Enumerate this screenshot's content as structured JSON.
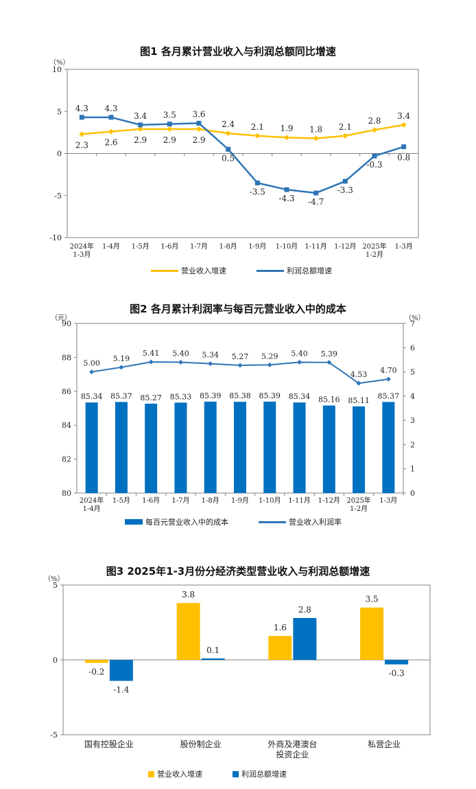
{
  "colors": {
    "yellow": "#FFC000",
    "blue": "#2E75B6",
    "axis": "#808080"
  },
  "chart_data": [
    {
      "type": "line",
      "title": "图1  各月累计营业收入与利润总额同比增速",
      "y_unit": "（%）",
      "ylim": [
        -10,
        10
      ],
      "yticks": [
        -10,
        -5,
        0,
        5,
        10
      ],
      "categories": [
        [
          "2024年",
          "1-3月"
        ],
        [
          "1-4月"
        ],
        [
          "1-5月"
        ],
        [
          "1-6月"
        ],
        [
          "1-7月"
        ],
        [
          "1-8月"
        ],
        [
          "1-9月"
        ],
        [
          "1-10月"
        ],
        [
          "1-11月"
        ],
        [
          "1-12月"
        ],
        [
          "2025年",
          "1-2月"
        ],
        [
          "1-3月"
        ]
      ],
      "series": [
        {
          "name": "营业收入增速",
          "color": "#FFC000",
          "marker": "diamond",
          "values": [
            2.3,
            2.6,
            2.9,
            2.9,
            2.9,
            2.4,
            2.1,
            1.9,
            1.8,
            2.1,
            2.8,
            3.4
          ],
          "labels": [
            "2.3",
            "2.6",
            "2.9",
            "2.9",
            "2.9",
            "2.4",
            "2.1",
            "1.9",
            "1.8",
            "2.1",
            "2.8",
            "3.4"
          ]
        },
        {
          "name": "利润总额增速",
          "color": "#2E75B6",
          "marker": "square",
          "values": [
            4.3,
            4.3,
            3.4,
            3.5,
            3.6,
            0.5,
            -3.5,
            -4.3,
            -4.7,
            -3.3,
            -0.3,
            0.8
          ],
          "labels": [
            "4.3",
            "4.3",
            "3.4",
            "3.5",
            "3.6",
            "0.5",
            "-3.5",
            "-4.3",
            "-4.7",
            "-3.3",
            "-0.3",
            "0.8"
          ]
        }
      ],
      "legend": [
        "营业收入增速",
        "利润总额增速"
      ],
      "grid": false
    },
    {
      "type": "bar+line",
      "title": "图2  各月累计利润率与每百元营业收入中的成本",
      "y_unit_left": "（元）",
      "y_unit_right": "（%）",
      "ylim_left": [
        80,
        90
      ],
      "yticks_left": [
        80,
        82,
        84,
        86,
        88,
        90
      ],
      "ylim_right": [
        0,
        7
      ],
      "yticks_right": [
        0,
        1,
        2,
        3,
        4,
        5,
        6,
        7
      ],
      "categories": [
        [
          "2024年",
          "1-4月"
        ],
        [
          "1-5月"
        ],
        [
          "1-6月"
        ],
        [
          "1-7月"
        ],
        [
          "1-8月"
        ],
        [
          "1-9月"
        ],
        [
          "1-10月"
        ],
        [
          "1-11月"
        ],
        [
          "1-12月"
        ],
        [
          "2025年",
          "1-2月"
        ],
        [
          "1-3月"
        ]
      ],
      "bar_series": {
        "name": "每百元营业收入中的成本",
        "color": "#0070C0",
        "values": [
          85.34,
          85.37,
          85.27,
          85.33,
          85.39,
          85.38,
          85.39,
          85.34,
          85.16,
          85.11,
          85.37
        ],
        "labels": [
          "85.34",
          "85.37",
          "85.27",
          "85.33",
          "85.39",
          "85.38",
          "85.39",
          "85.34",
          "85.16",
          "85.11",
          "85.37"
        ]
      },
      "line_series": {
        "name": "营业收入利润率",
        "color": "#2E75B6",
        "values": [
          5.0,
          5.19,
          5.41,
          5.4,
          5.34,
          5.27,
          5.29,
          5.4,
          5.39,
          4.53,
          4.7
        ],
        "labels": [
          "5.00",
          "5.19",
          "5.41",
          "5.40",
          "5.34",
          "5.27",
          "5.29",
          "5.40",
          "5.39",
          "4.53",
          "4.70"
        ]
      },
      "legend": [
        "每百元营业收入中的成本",
        "营业收入利润率"
      ],
      "grid": false
    },
    {
      "type": "bar",
      "title": "图3  2025年1-3月份分经济类型营业收入与利润总额增速",
      "y_unit": "（%）",
      "ylim": [
        -5,
        5
      ],
      "yticks": [
        -5,
        0,
        5
      ],
      "categories": [
        [
          "国有控股企业"
        ],
        [
          "股份制企业"
        ],
        [
          "外商及港澳台",
          "投资企业"
        ],
        [
          "私营企业"
        ]
      ],
      "series": [
        {
          "name": "营业收入增速",
          "color": "#FFC000",
          "values": [
            -0.2,
            3.8,
            1.6,
            3.5
          ],
          "labels": [
            "-0.2",
            "3.8",
            "1.6",
            "3.5"
          ]
        },
        {
          "name": "利润总额增速",
          "color": "#0070C0",
          "values": [
            -1.4,
            0.1,
            2.8,
            -0.3
          ],
          "labels": [
            "-1.4",
            "0.1",
            "2.8",
            "-0.3"
          ]
        }
      ],
      "legend": [
        "营业收入增速",
        "利润总额增速"
      ],
      "grid": false
    }
  ]
}
